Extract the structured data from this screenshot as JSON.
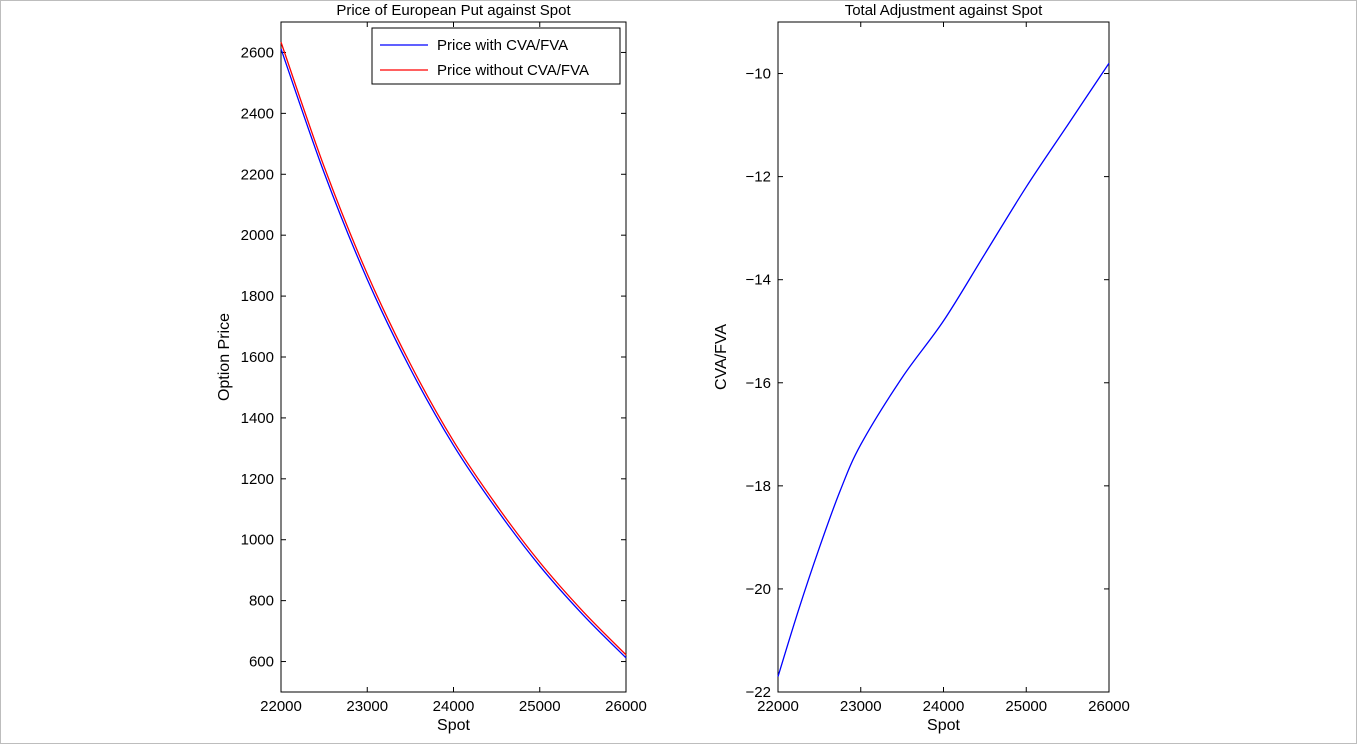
{
  "chart_data": [
    {
      "type": "line",
      "title": "Price of European Put against Spot",
      "xlabel": "Spot",
      "ylabel": "Option Price",
      "xlim": [
        22000,
        26000
      ],
      "ylim": [
        500,
        2700
      ],
      "xticks": [
        "22000",
        "23000",
        "24000",
        "25000",
        "26000"
      ],
      "yticks": [
        "600",
        "800",
        "1000",
        "1200",
        "1400",
        "1600",
        "1800",
        "2000",
        "2200",
        "2400",
        "2600"
      ],
      "grid": false,
      "legend_position": "top-right",
      "series": [
        {
          "name": "Price with CVA/FVA",
          "color": "#0000ff",
          "x": [
            22000,
            22500,
            23000,
            23500,
            24000,
            24500,
            25000,
            25500,
            26000
          ],
          "y": [
            2612,
            2205,
            1855,
            1561,
            1310,
            1100,
            914,
            754,
            612
          ]
        },
        {
          "name": "Price without CVA/FVA",
          "color": "#ff0000",
          "x": [
            22000,
            22500,
            23000,
            23500,
            24000,
            24500,
            25000,
            25500,
            26000
          ],
          "y": [
            2634,
            2225,
            1873,
            1577,
            1324,
            1113,
            926,
            765,
            622
          ]
        }
      ]
    },
    {
      "type": "line",
      "title": "Total Adjustment against Spot",
      "xlabel": "Spot",
      "ylabel": "CVA/FVA",
      "xlim": [
        22000,
        26000
      ],
      "ylim": [
        -22,
        -9
      ],
      "xticks": [
        "22000",
        "23000",
        "24000",
        "25000",
        "26000"
      ],
      "yticks": [
        "-22",
        "-20",
        "-18",
        "-16",
        "-14",
        "-12",
        "-10"
      ],
      "grid": false,
      "series": [
        {
          "color": "#0000ff",
          "x": [
            22000,
            22250,
            22500,
            22750,
            23000,
            23500,
            24000,
            24500,
            25000,
            25500,
            26000
          ],
          "y": [
            -21.7,
            -20.4,
            -19.2,
            -18.1,
            -17.2,
            -15.9,
            -14.8,
            -13.5,
            -12.2,
            -11.0,
            -9.8
          ]
        }
      ]
    }
  ]
}
